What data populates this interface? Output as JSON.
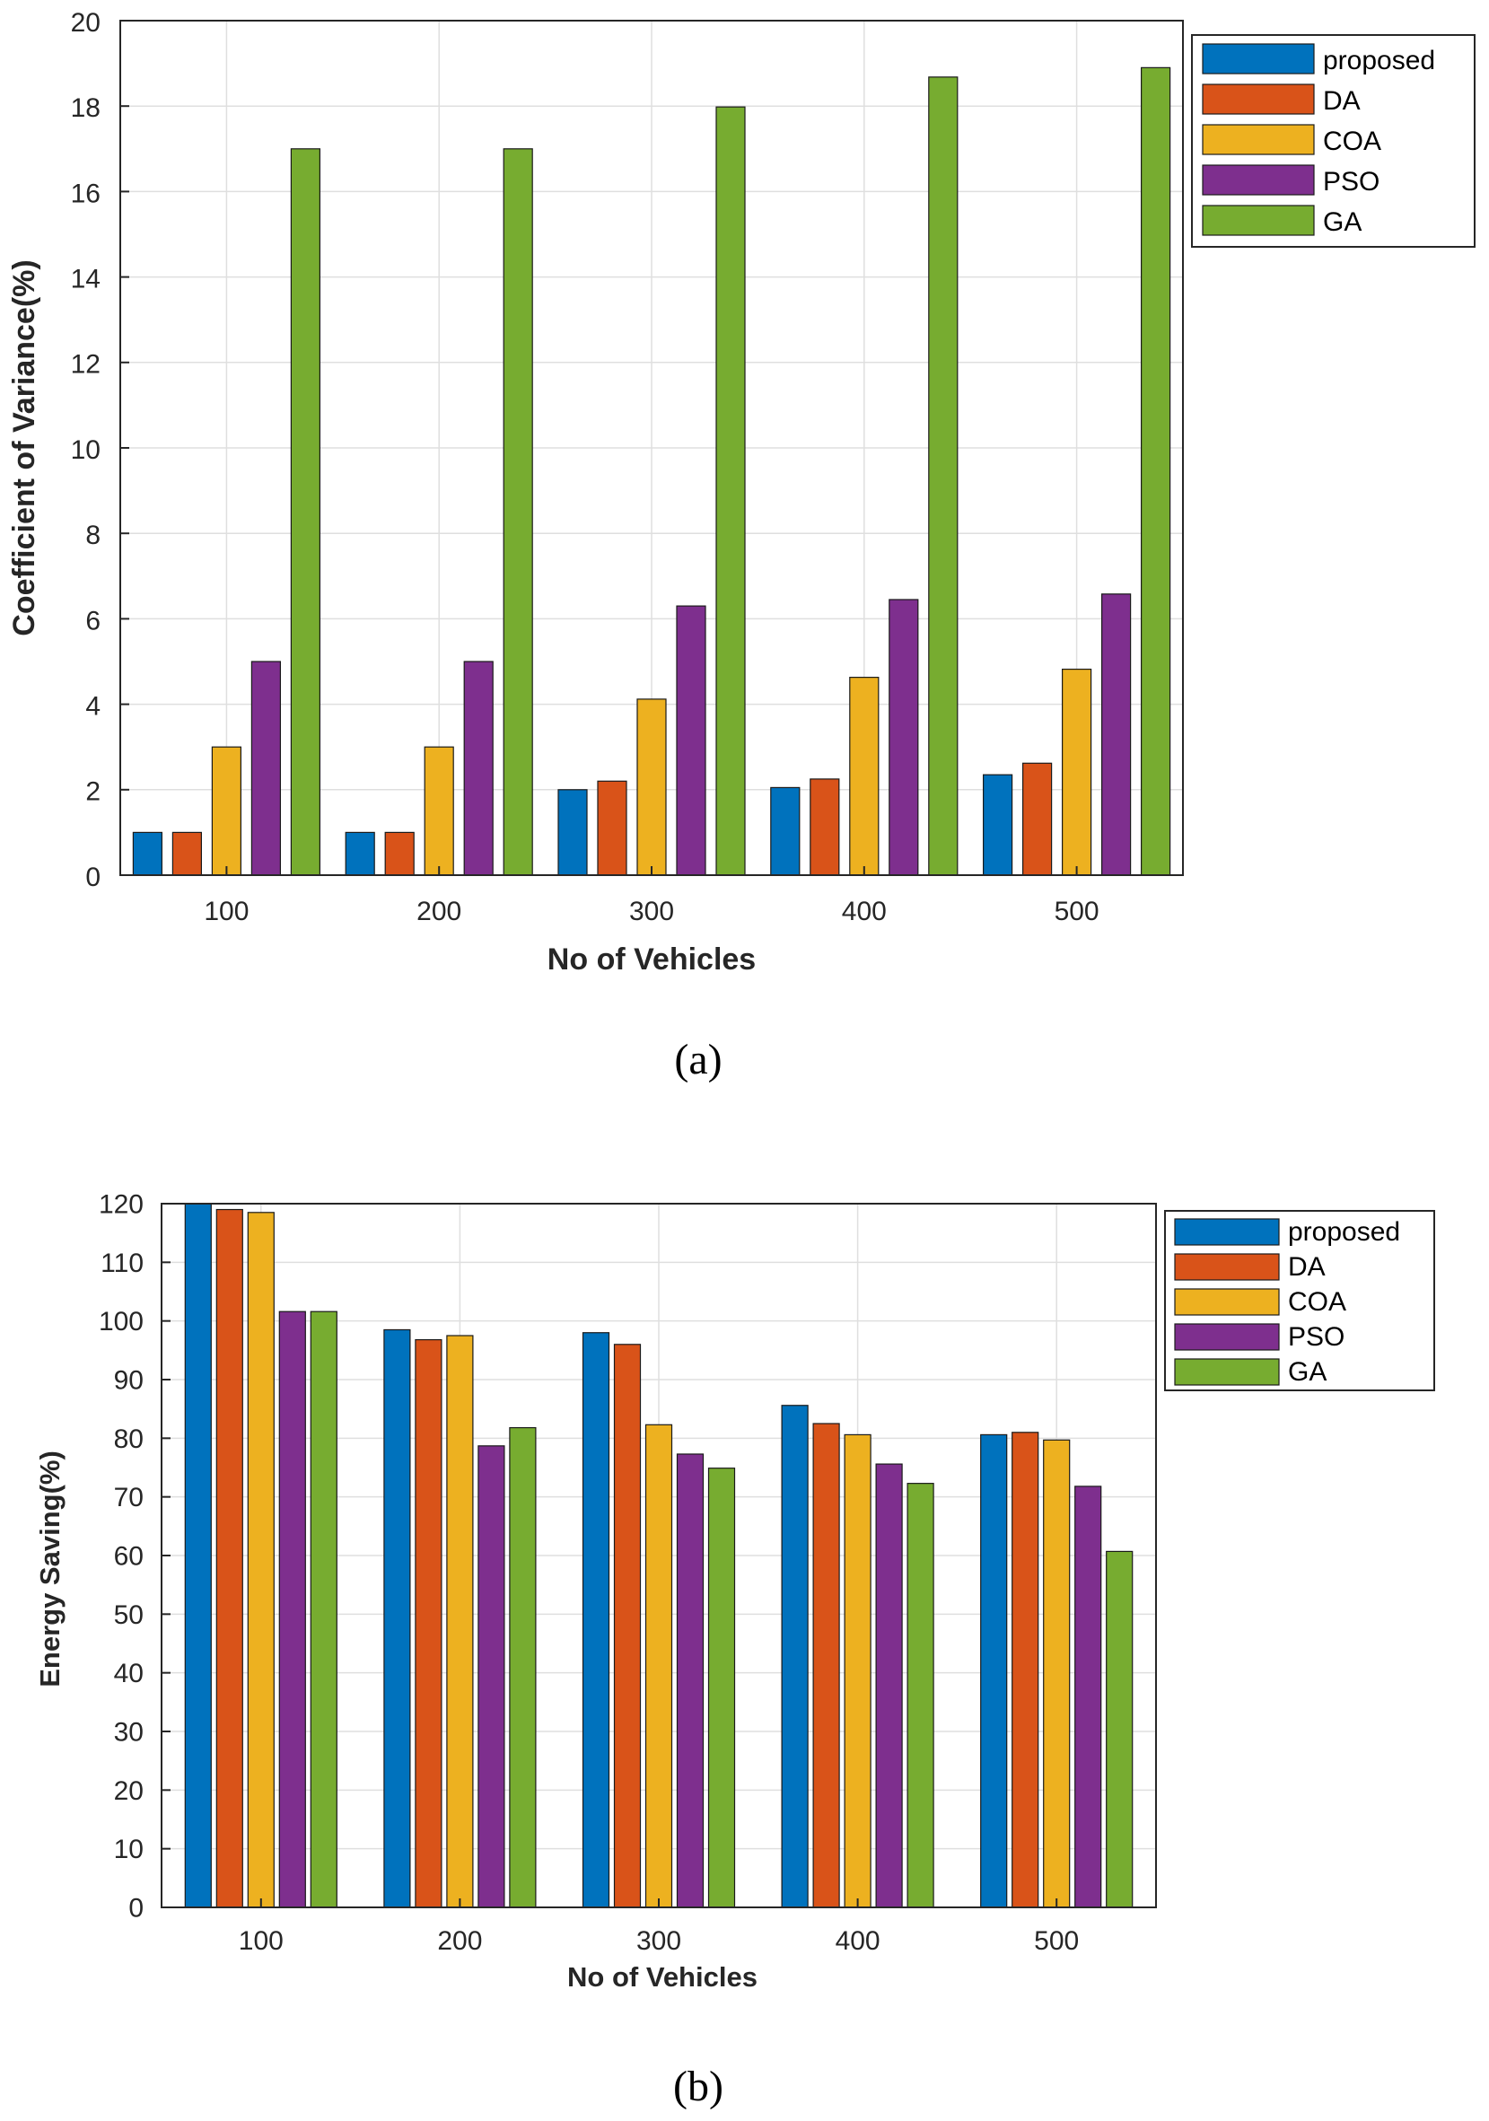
{
  "chart_data": [
    {
      "type": "bar",
      "caption": "(a)",
      "title": "",
      "xlabel": "No of Vehicles",
      "ylabel": "Coefficient of Variance(%)",
      "categories": [
        "100",
        "200",
        "300",
        "400",
        "500"
      ],
      "ylim": [
        0,
        20
      ],
      "yticks": [
        0,
        2,
        4,
        6,
        8,
        10,
        12,
        14,
        16,
        18,
        20
      ],
      "grid": true,
      "legend_position": "outside-top-right",
      "series": [
        {
          "name": "proposed",
          "color": "#0072BD",
          "values": [
            1.0,
            1.0,
            2.0,
            2.05,
            2.35
          ]
        },
        {
          "name": "DA",
          "color": "#D95319",
          "values": [
            1.0,
            1.0,
            2.2,
            2.25,
            2.62
          ]
        },
        {
          "name": "COA",
          "color": "#EDB120",
          "values": [
            3.0,
            3.0,
            4.12,
            4.63,
            4.82
          ]
        },
        {
          "name": "PSO",
          "color": "#7E2F8E",
          "values": [
            5.0,
            5.0,
            6.3,
            6.45,
            6.58
          ]
        },
        {
          "name": "GA",
          "color": "#77AC30",
          "values": [
            17.0,
            17.0,
            17.98,
            18.68,
            18.9
          ]
        }
      ]
    },
    {
      "type": "bar",
      "caption": "(b)",
      "title": "",
      "xlabel": "No of Vehicles",
      "ylabel": "Energy Saving(%)",
      "categories": [
        "100",
        "200",
        "300",
        "400",
        "500"
      ],
      "ylim": [
        0,
        120
      ],
      "yticks": [
        0,
        10,
        20,
        30,
        40,
        50,
        60,
        70,
        80,
        90,
        100,
        110,
        120
      ],
      "grid": true,
      "legend_position": "outside-top-right",
      "series": [
        {
          "name": "proposed",
          "color": "#0072BD",
          "values": [
            120.0,
            98.5,
            98.0,
            85.6,
            80.6
          ]
        },
        {
          "name": "DA",
          "color": "#D95319",
          "values": [
            119.0,
            96.8,
            96.0,
            82.5,
            81.0
          ]
        },
        {
          "name": "COA",
          "color": "#EDB120",
          "values": [
            118.5,
            97.5,
            82.3,
            80.6,
            79.7
          ]
        },
        {
          "name": "PSO",
          "color": "#7E2F8E",
          "values": [
            101.6,
            78.7,
            77.3,
            75.6,
            71.8
          ]
        },
        {
          "name": "GA",
          "color": "#77AC30",
          "values": [
            101.6,
            81.8,
            74.9,
            72.3,
            60.7
          ]
        }
      ]
    }
  ]
}
